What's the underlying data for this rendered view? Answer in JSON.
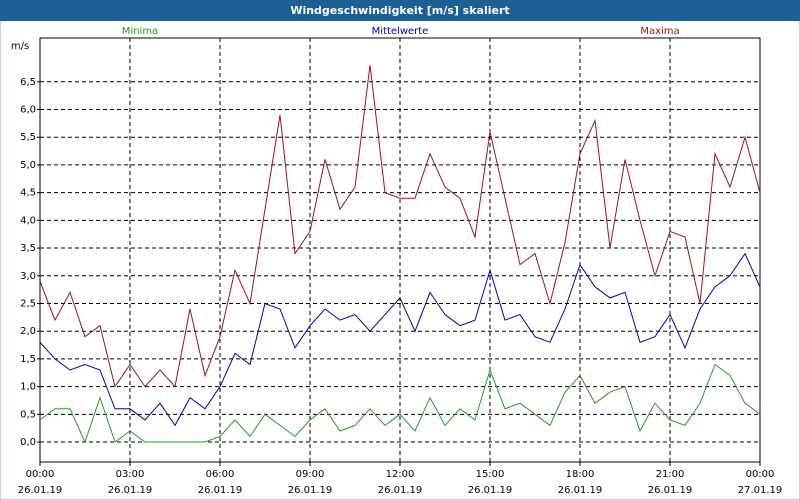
{
  "chart_data": {
    "type": "line",
    "title": "Windgeschwindigkeit [m/s] skaliert",
    "y_label": "m/s",
    "x": [
      0,
      0.5,
      1,
      1.5,
      2,
      2.5,
      3,
      3.5,
      4,
      4.5,
      5,
      5.5,
      6,
      6.5,
      7,
      7.5,
      8,
      8.5,
      9,
      9.5,
      10,
      10.5,
      11,
      11.5,
      12,
      12.5,
      13,
      13.5,
      14,
      14.5,
      15,
      15.5,
      16,
      16.5,
      17,
      17.5,
      18,
      18.5,
      19,
      19.5,
      20,
      20.5,
      21,
      21.5,
      22,
      22.5,
      23,
      23.5,
      24
    ],
    "xlim": [
      0,
      24
    ],
    "xticks": [
      {
        "value": 0,
        "label": "00:00",
        "date": "26.01.19"
      },
      {
        "value": 3,
        "label": "03:00",
        "date": "26.01.19"
      },
      {
        "value": 6,
        "label": "06:00",
        "date": "26.01.19"
      },
      {
        "value": 9,
        "label": "09:00",
        "date": "26.01.19"
      },
      {
        "value": 12,
        "label": "12:00",
        "date": "26.01.19"
      },
      {
        "value": 15,
        "label": "15:00",
        "date": "26.01.19"
      },
      {
        "value": 18,
        "label": "18:00",
        "date": "26.01.19"
      },
      {
        "value": 21,
        "label": "21:00",
        "date": "26.01.19"
      },
      {
        "value": 24,
        "label": "00:00",
        "date": "27.01.19"
      }
    ],
    "ylim": [
      -0.36,
      7.29
    ],
    "yticks": [
      {
        "value": 0,
        "label": "0,0"
      },
      {
        "value": 0.5,
        "label": "0,5"
      },
      {
        "value": 1,
        "label": "1,0"
      },
      {
        "value": 1.5,
        "label": "1,5"
      },
      {
        "value": 2,
        "label": "2,0"
      },
      {
        "value": 2.5,
        "label": "2,5"
      },
      {
        "value": 3,
        "label": "3,0"
      },
      {
        "value": 3.5,
        "label": "3,5"
      },
      {
        "value": 4,
        "label": "4,0"
      },
      {
        "value": 4.5,
        "label": "4,5"
      },
      {
        "value": 5,
        "label": "5,0"
      },
      {
        "value": 5.5,
        "label": "5,5"
      },
      {
        "value": 6,
        "label": "6,0"
      },
      {
        "value": 6.5,
        "label": "6,5"
      }
    ],
    "grid": true,
    "series": [
      {
        "name": "Minima",
        "color": "#1aa31a",
        "values": [
          0.4,
          0.6,
          0.6,
          0,
          0.8,
          0,
          0.2,
          0,
          0,
          0,
          0,
          0,
          0.1,
          0.4,
          0.1,
          0.5,
          0.3,
          0.1,
          0.4,
          0.6,
          0.2,
          0.3,
          0.6,
          0.3,
          0.5,
          0.2,
          0.8,
          0.3,
          0.6,
          0.4,
          1.3,
          0.6,
          0.7,
          0.5,
          0.3,
          0.9,
          1.2,
          0.7,
          0.9,
          1.0,
          0.2,
          0.7,
          0.4,
          0.3,
          0.7,
          1.4,
          1.2,
          0.7,
          0.5
        ]
      },
      {
        "name": "Mittelwerte",
        "color": "#0000b4",
        "values": [
          1.8,
          1.5,
          1.3,
          1.4,
          1.3,
          0.6,
          0.6,
          0.4,
          0.7,
          0.3,
          0.8,
          0.6,
          1.0,
          1.6,
          1.4,
          2.5,
          2.4,
          1.7,
          2.1,
          2.4,
          2.2,
          2.3,
          2.0,
          2.3,
          2.6,
          2.0,
          2.7,
          2.3,
          2.1,
          2.2,
          3.1,
          2.2,
          2.3,
          1.9,
          1.8,
          2.4,
          3.2,
          2.8,
          2.6,
          2.7,
          1.8,
          1.9,
          2.3,
          1.7,
          2.4,
          2.8,
          3.0,
          3.4,
          2.8
        ]
      },
      {
        "name": "Maxima",
        "color": "#a01414",
        "values": [
          2.9,
          2.2,
          2.7,
          1.9,
          2.1,
          1.0,
          1.4,
          1.0,
          1.3,
          1.0,
          2.4,
          1.2,
          1.9,
          3.1,
          2.5,
          4.2,
          5.9,
          3.4,
          3.8,
          5.1,
          4.2,
          4.6,
          6.8,
          4.5,
          4.4,
          4.4,
          5.2,
          4.6,
          4.4,
          3.7,
          5.6,
          4.4,
          3.2,
          3.4,
          2.5,
          3.6,
          5.2,
          5.8,
          3.5,
          5.1,
          4.0,
          3.0,
          3.8,
          3.7,
          2.5,
          5.2,
          4.6,
          5.5,
          4.5
        ]
      }
    ]
  }
}
